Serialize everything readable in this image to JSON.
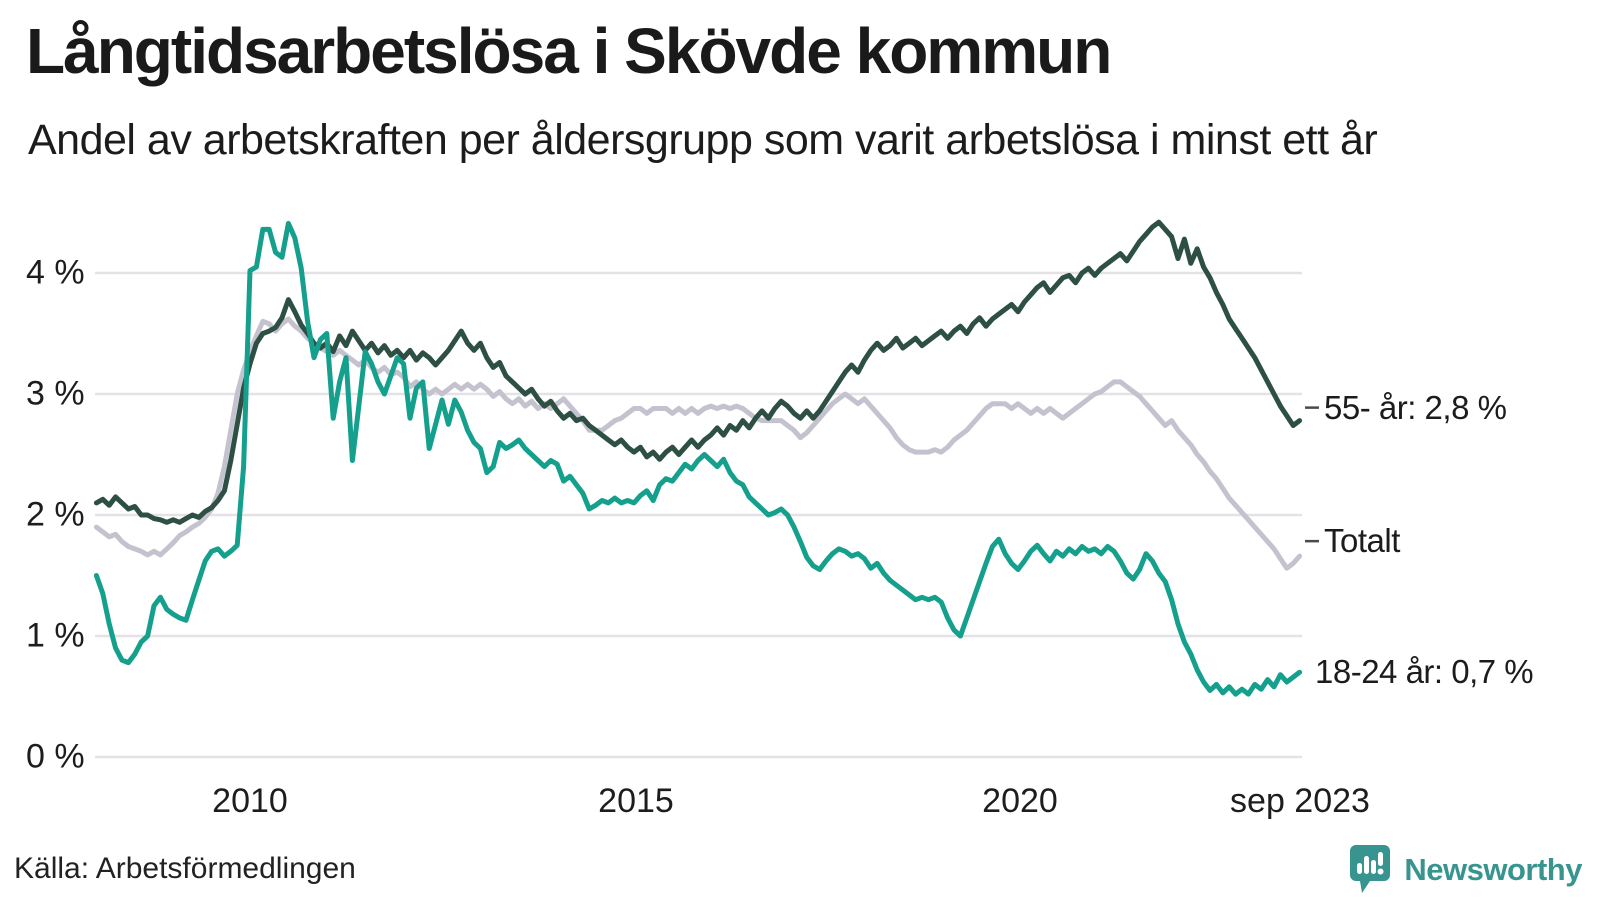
{
  "title": "Långtidsarbetslösa i Skövde kommun",
  "subtitle": "Andel av arbetskraften per åldersgrupp som varit arbetslösa i minst ett år",
  "source": "Källa: Arbetsförmedlingen",
  "branding": {
    "name": "Newsworthy",
    "icon": "newsworthy-speech-bubble-bar-chart-icon",
    "color": "#38948F"
  },
  "chart_data": {
    "type": "line",
    "title": "Långtidsarbetslösa i Skövde kommun",
    "subtitle": "Andel av arbetskraften per åldersgrupp som varit arbetslösa i minst ett år",
    "x_interval": "monthly",
    "x_start": "2008-01",
    "x_end": "2023-09",
    "xticks": [
      "2010",
      "2015",
      "2020",
      "sep 2023"
    ],
    "xtick_years": [
      2010.0,
      2015.0,
      2020.0,
      2023.667
    ],
    "yticks": [
      "0 %",
      "1 %",
      "2 %",
      "3 %",
      "4 %"
    ],
    "ytick_values": [
      0,
      1,
      2,
      3,
      4
    ],
    "ylim": [
      0,
      4.6
    ],
    "grid": "horizontal",
    "gridline_color": "#E4E2E7",
    "legend_position": "end-of-line-labels",
    "series": [
      {
        "name": "Totalt",
        "label": "Totalt",
        "end_value": 1.66,
        "color": "#C5C2CF",
        "values": [
          1.9,
          1.86,
          1.82,
          1.84,
          1.78,
          1.74,
          1.72,
          1.7,
          1.67,
          1.7,
          1.67,
          1.72,
          1.77,
          1.83,
          1.86,
          1.9,
          1.93,
          1.98,
          2.05,
          2.18,
          2.4,
          2.7,
          3.0,
          3.2,
          3.35,
          3.48,
          3.6,
          3.58,
          3.52,
          3.58,
          3.62,
          3.56,
          3.52,
          3.46,
          3.42,
          3.38,
          3.35,
          3.32,
          3.36,
          3.32,
          3.28,
          3.24,
          3.28,
          3.22,
          3.18,
          3.22,
          3.16,
          3.18,
          3.14,
          3.06,
          3.1,
          3.04,
          3.0,
          3.04,
          3.0,
          3.04,
          3.08,
          3.04,
          3.08,
          3.04,
          3.08,
          3.04,
          2.98,
          3.02,
          2.96,
          2.92,
          2.96,
          2.9,
          2.94,
          2.88,
          2.92,
          2.88,
          2.92,
          2.96,
          2.9,
          2.84,
          2.78,
          2.7,
          2.7,
          2.7,
          2.74,
          2.78,
          2.8,
          2.84,
          2.88,
          2.88,
          2.84,
          2.88,
          2.88,
          2.88,
          2.84,
          2.88,
          2.84,
          2.88,
          2.84,
          2.88,
          2.9,
          2.88,
          2.9,
          2.88,
          2.9,
          2.88,
          2.84,
          2.8,
          2.78,
          2.78,
          2.78,
          2.78,
          2.74,
          2.7,
          2.64,
          2.68,
          2.74,
          2.8,
          2.86,
          2.92,
          2.96,
          3.0,
          2.96,
          2.92,
          2.96,
          2.9,
          2.84,
          2.78,
          2.72,
          2.64,
          2.58,
          2.54,
          2.52,
          2.52,
          2.52,
          2.54,
          2.52,
          2.56,
          2.62,
          2.66,
          2.7,
          2.76,
          2.82,
          2.88,
          2.92,
          2.92,
          2.92,
          2.88,
          2.92,
          2.88,
          2.84,
          2.88,
          2.84,
          2.88,
          2.84,
          2.8,
          2.84,
          2.88,
          2.92,
          2.96,
          3.0,
          3.02,
          3.06,
          3.1,
          3.1,
          3.06,
          3.02,
          2.98,
          2.92,
          2.86,
          2.8,
          2.74,
          2.78,
          2.7,
          2.64,
          2.58,
          2.5,
          2.44,
          2.36,
          2.3,
          2.22,
          2.14,
          2.08,
          2.02,
          1.96,
          1.9,
          1.84,
          1.78,
          1.72,
          1.64,
          1.56,
          1.6,
          1.66
        ]
      },
      {
        "name": "55- år",
        "label": "55- år: 2,8 %",
        "end_value": 2.78,
        "color": "#2D4F44",
        "values": [
          2.1,
          2.13,
          2.08,
          2.15,
          2.1,
          2.05,
          2.07,
          2.0,
          2.0,
          1.97,
          1.96,
          1.94,
          1.96,
          1.94,
          1.97,
          2.0,
          1.98,
          2.03,
          2.06,
          2.12,
          2.2,
          2.45,
          2.75,
          3.05,
          3.25,
          3.42,
          3.5,
          3.52,
          3.55,
          3.63,
          3.78,
          3.68,
          3.57,
          3.5,
          3.42,
          3.38,
          3.42,
          3.35,
          3.48,
          3.4,
          3.52,
          3.44,
          3.36,
          3.42,
          3.34,
          3.4,
          3.32,
          3.36,
          3.3,
          3.36,
          3.28,
          3.34,
          3.3,
          3.24,
          3.3,
          3.36,
          3.44,
          3.52,
          3.42,
          3.36,
          3.42,
          3.3,
          3.22,
          3.26,
          3.15,
          3.1,
          3.05,
          3.0,
          3.04,
          2.96,
          2.9,
          2.94,
          2.86,
          2.8,
          2.84,
          2.78,
          2.8,
          2.74,
          2.7,
          2.66,
          2.62,
          2.58,
          2.62,
          2.56,
          2.52,
          2.56,
          2.48,
          2.52,
          2.46,
          2.52,
          2.56,
          2.5,
          2.56,
          2.62,
          2.56,
          2.62,
          2.66,
          2.72,
          2.66,
          2.74,
          2.7,
          2.78,
          2.72,
          2.8,
          2.86,
          2.8,
          2.88,
          2.94,
          2.9,
          2.84,
          2.8,
          2.86,
          2.8,
          2.86,
          2.94,
          3.02,
          3.1,
          3.18,
          3.24,
          3.18,
          3.28,
          3.36,
          3.42,
          3.36,
          3.4,
          3.46,
          3.38,
          3.42,
          3.46,
          3.4,
          3.44,
          3.48,
          3.52,
          3.46,
          3.52,
          3.56,
          3.5,
          3.58,
          3.63,
          3.56,
          3.62,
          3.66,
          3.7,
          3.74,
          3.68,
          3.76,
          3.82,
          3.88,
          3.92,
          3.84,
          3.9,
          3.96,
          3.98,
          3.92,
          4.0,
          4.04,
          3.98,
          4.04,
          4.08,
          4.12,
          4.16,
          4.1,
          4.18,
          4.26,
          4.32,
          4.38,
          4.42,
          4.36,
          4.3,
          4.12,
          4.28,
          4.08,
          4.2,
          4.05,
          3.96,
          3.84,
          3.74,
          3.62,
          3.54,
          3.46,
          3.38,
          3.3,
          3.2,
          3.1,
          3.0,
          2.9,
          2.82,
          2.74,
          2.78
        ]
      },
      {
        "name": "18-24 år",
        "label": "18-24 år: 0,7 %",
        "end_value": 0.7,
        "color": "#14A08C",
        "values": [
          1.5,
          1.35,
          1.1,
          0.9,
          0.8,
          0.78,
          0.85,
          0.95,
          1.0,
          1.25,
          1.32,
          1.22,
          1.18,
          1.15,
          1.13,
          1.3,
          1.46,
          1.62,
          1.7,
          1.72,
          1.66,
          1.7,
          1.75,
          2.4,
          4.02,
          4.05,
          4.36,
          4.36,
          4.17,
          4.13,
          4.41,
          4.29,
          4.04,
          3.6,
          3.3,
          3.45,
          3.5,
          2.8,
          3.1,
          3.3,
          2.45,
          2.9,
          3.35,
          3.25,
          3.1,
          3.0,
          3.15,
          3.3,
          3.25,
          2.8,
          3.05,
          3.1,
          2.55,
          2.75,
          2.95,
          2.75,
          2.95,
          2.85,
          2.7,
          2.6,
          2.55,
          2.35,
          2.4,
          2.6,
          2.55,
          2.58,
          2.62,
          2.55,
          2.5,
          2.45,
          2.4,
          2.45,
          2.42,
          2.28,
          2.32,
          2.25,
          2.18,
          2.05,
          2.08,
          2.12,
          2.1,
          2.14,
          2.1,
          2.12,
          2.1,
          2.16,
          2.2,
          2.12,
          2.25,
          2.3,
          2.28,
          2.35,
          2.42,
          2.38,
          2.45,
          2.5,
          2.45,
          2.4,
          2.46,
          2.35,
          2.28,
          2.25,
          2.15,
          2.1,
          2.05,
          2.0,
          2.02,
          2.05,
          2.0,
          1.9,
          1.78,
          1.65,
          1.58,
          1.55,
          1.62,
          1.68,
          1.72,
          1.7,
          1.66,
          1.68,
          1.64,
          1.56,
          1.6,
          1.52,
          1.46,
          1.42,
          1.38,
          1.34,
          1.3,
          1.32,
          1.3,
          1.32,
          1.28,
          1.15,
          1.05,
          1.0,
          1.15,
          1.3,
          1.45,
          1.6,
          1.74,
          1.8,
          1.68,
          1.6,
          1.55,
          1.62,
          1.7,
          1.75,
          1.68,
          1.62,
          1.7,
          1.66,
          1.72,
          1.68,
          1.74,
          1.7,
          1.72,
          1.68,
          1.74,
          1.7,
          1.62,
          1.52,
          1.47,
          1.55,
          1.68,
          1.62,
          1.52,
          1.45,
          1.3,
          1.1,
          0.95,
          0.85,
          0.72,
          0.62,
          0.55,
          0.6,
          0.53,
          0.58,
          0.52,
          0.56,
          0.52,
          0.6,
          0.56,
          0.64,
          0.58,
          0.68,
          0.62,
          0.66,
          0.7
        ]
      }
    ]
  }
}
